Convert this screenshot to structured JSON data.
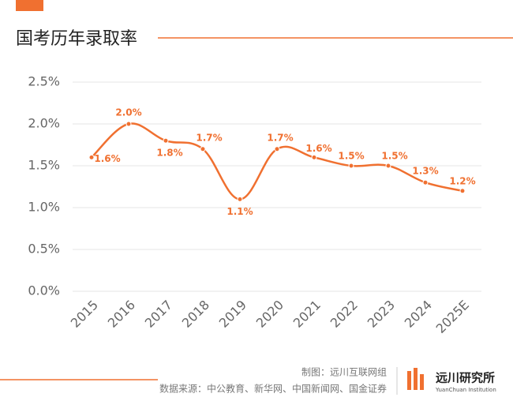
{
  "chart_data": {
    "type": "line",
    "title": "国考历年录取率",
    "categories": [
      "2015",
      "2016",
      "2017",
      "2018",
      "2019",
      "2020",
      "2021",
      "2022",
      "2023",
      "2024",
      "2025E"
    ],
    "values": [
      1.6,
      2.0,
      1.8,
      1.7,
      1.1,
      1.7,
      1.6,
      1.5,
      1.5,
      1.3,
      1.2
    ],
    "value_labels": [
      "1.6%",
      "2.0%",
      "1.8%",
      "1.7%",
      "1.1%",
      "1.7%",
      "1.6%",
      "1.5%",
      "1.5%",
      "1.3%",
      "1.2%"
    ],
    "color": "#f07030",
    "ylim": [
      0,
      2.5
    ],
    "yticks": [
      {
        "value": 0,
        "label": "0.0%"
      },
      {
        "value": 0.5,
        "label": "0.5%"
      },
      {
        "value": 1.0,
        "label": "1.0%"
      },
      {
        "value": 1.5,
        "label": "1.5%"
      },
      {
        "value": 2.0,
        "label": "2.0%"
      },
      {
        "value": 2.5,
        "label": "2.5%"
      }
    ],
    "grid": true
  },
  "footer": {
    "credit": "制图：远川互联网组",
    "source": "数据来源：中公教育、新华网、中国新闻网、国金证券",
    "logo": "远川研究所",
    "logo_en": "YuanChuan Institution"
  }
}
